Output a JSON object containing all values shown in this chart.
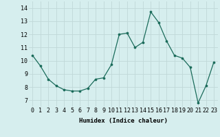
{
  "x": [
    0,
    1,
    2,
    3,
    4,
    5,
    6,
    7,
    8,
    9,
    10,
    11,
    12,
    13,
    14,
    15,
    16,
    17,
    18,
    19,
    20,
    21,
    22,
    23
  ],
  "y": [
    10.4,
    9.6,
    8.6,
    8.1,
    7.8,
    7.7,
    7.7,
    7.9,
    8.6,
    8.7,
    9.7,
    12.0,
    12.1,
    11.0,
    11.4,
    13.7,
    12.9,
    11.5,
    10.4,
    10.2,
    9.5,
    6.8,
    8.1,
    9.9
  ],
  "line_color": "#1a6b5a",
  "marker_color": "#1a6b5a",
  "background_color": "#d6eeee",
  "grid_color": "#c0d8d8",
  "xlabel": "Humidex (Indice chaleur)",
  "ylim": [
    6.5,
    14.5
  ],
  "xlim": [
    -0.5,
    23.5
  ],
  "yticks": [
    7,
    8,
    9,
    10,
    11,
    12,
    13,
    14
  ],
  "xticks": [
    0,
    1,
    2,
    3,
    4,
    5,
    6,
    7,
    8,
    9,
    10,
    11,
    12,
    13,
    14,
    15,
    16,
    17,
    18,
    19,
    20,
    21,
    22,
    23
  ],
  "xlabel_fontsize": 6.5,
  "tick_fontsize": 6.0
}
